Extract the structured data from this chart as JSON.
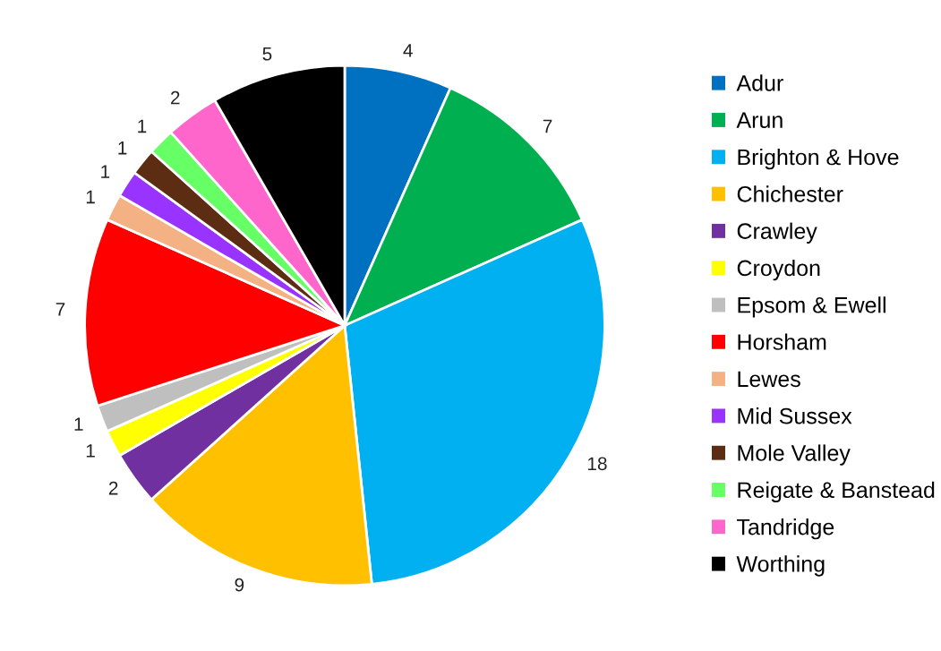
{
  "chart_data": {
    "type": "pie",
    "categories": [
      "Adur",
      "Arun",
      "Brighton & Hove",
      "Chichester",
      "Crawley",
      "Croydon",
      "Epsom & Ewell",
      "Horsham",
      "Lewes",
      "Mid Sussex",
      "Mole Valley",
      "Reigate & Banstead",
      "Tandridge",
      "Worthing"
    ],
    "values": [
      4,
      7,
      18,
      9,
      2,
      1,
      1,
      7,
      1,
      1,
      1,
      1,
      2,
      5
    ],
    "colors": [
      "#0070c0",
      "#00b050",
      "#00b0f0",
      "#ffc000",
      "#7030a0",
      "#ffff00",
      "#bfbfbf",
      "#ff0000",
      "#f4b183",
      "#9933ff",
      "#5c2d12",
      "#66ff66",
      "#ff66cc",
      "#000000"
    ],
    "data_labels": true,
    "legend": "right"
  }
}
